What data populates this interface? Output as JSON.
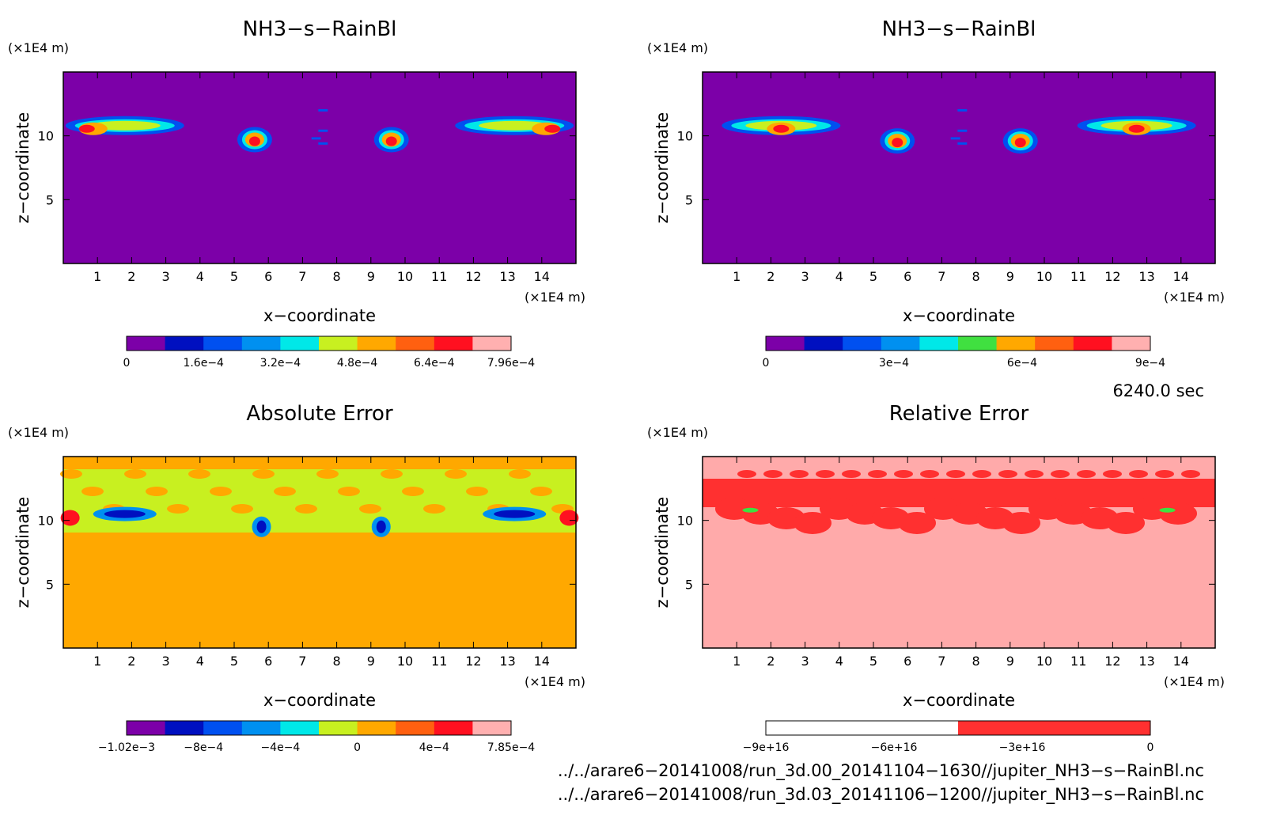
{
  "chart_data": [
    {
      "type": "heatmap",
      "title": "NH3−s−RainBl",
      "xlabel": "x−coordinate",
      "ylabel": "z−coordinate",
      "x_unit": "(×1E4 m)",
      "y_unit": "(×1E4 m)",
      "xlim": [
        0,
        15
      ],
      "ylim": [
        0,
        15
      ],
      "xticks": [
        1,
        2,
        3,
        4,
        5,
        6,
        7,
        8,
        9,
        10,
        11,
        12,
        13,
        14
      ],
      "yticks": [
        5,
        10
      ],
      "background_color": "#7c00a8",
      "blobs": [
        {
          "x": 1.8,
          "z": 10.8,
          "color": "#0b3af0"
        },
        {
          "x": 5.6,
          "z": 9.7,
          "color": "#ff2020"
        },
        {
          "x": 9.6,
          "z": 9.7,
          "color": "#ff2020"
        },
        {
          "x": 13.2,
          "z": 10.8,
          "color": "#0b3af0"
        }
      ],
      "colorbar": {
        "ticks": [
          "0",
          "1.6e−4",
          "3.2e−4",
          "4.8e−4",
          "6.4e−4",
          "7.96e−4"
        ],
        "colors": [
          "#7c00a8",
          "#0010c0",
          "#0050f0",
          "#0090f0",
          "#00e8e8",
          "#c8f020",
          "#ffa800",
          "#ff6010",
          "#ff1020",
          "#ffb0b0"
        ]
      }
    },
    {
      "type": "heatmap",
      "title": "NH3−s−RainBl",
      "xlabel": "x−coordinate",
      "ylabel": "z−coordinate",
      "x_unit": "(×1E4 m)",
      "y_unit": "(×1E4 m)",
      "xlim": [
        0,
        15
      ],
      "ylim": [
        0,
        15
      ],
      "xticks": [
        1,
        2,
        3,
        4,
        5,
        6,
        7,
        8,
        9,
        10,
        11,
        12,
        13,
        14
      ],
      "yticks": [
        5,
        10
      ],
      "background_color": "#7c00a8",
      "blobs": [
        {
          "x": 2.3,
          "z": 10.8,
          "color": "#0b3af0"
        },
        {
          "x": 5.7,
          "z": 9.6,
          "color": "#ff2020"
        },
        {
          "x": 9.3,
          "z": 9.6,
          "color": "#ff2020"
        },
        {
          "x": 12.7,
          "z": 10.8,
          "color": "#0b3af0"
        }
      ],
      "colorbar": {
        "ticks": [
          "0",
          "3e−4",
          "6e−4",
          "9e−4"
        ],
        "colors": [
          "#7c00a8",
          "#0010c0",
          "#0050f0",
          "#0090f0",
          "#00e8e8",
          "#40e040",
          "#ffa800",
          "#ff6010",
          "#ff1020",
          "#ffb0b0"
        ]
      }
    },
    {
      "type": "heatmap",
      "title": "Absolute Error",
      "xlabel": "x−coordinate",
      "ylabel": "z−coordinate",
      "x_unit": "(×1E4 m)",
      "y_unit": "(×1E4 m)",
      "xlim": [
        0,
        15
      ],
      "ylim": [
        0,
        15
      ],
      "xticks": [
        1,
        2,
        3,
        4,
        5,
        6,
        7,
        8,
        9,
        10,
        11,
        12,
        13,
        14
      ],
      "yticks": [
        5,
        10
      ],
      "background_color": "#ffa800",
      "colorbar": {
        "ticks": [
          "−1.02e−3",
          "−8e−4",
          "−4e−4",
          "0",
          "4e−4",
          "7.85e−4"
        ],
        "colors": [
          "#7c00a8",
          "#0010c0",
          "#0050f0",
          "#0090f0",
          "#00e8e8",
          "#c8f020",
          "#ffa800",
          "#ff6010",
          "#ff1020",
          "#ffb0b0"
        ]
      }
    },
    {
      "type": "heatmap",
      "title": "Relative Error",
      "xlabel": "x−coordinate",
      "ylabel": "z−coordinate",
      "x_unit": "(×1E4 m)",
      "y_unit": "(×1E4 m)",
      "xlim": [
        0,
        15
      ],
      "ylim": [
        0,
        15
      ],
      "xticks": [
        1,
        2,
        3,
        4,
        5,
        6,
        7,
        8,
        9,
        10,
        11,
        12,
        13,
        14
      ],
      "yticks": [
        5,
        10
      ],
      "background_color": "#ffaaaa",
      "colorbar": {
        "ticks": [
          "−9e+16",
          "−6e+16",
          "−3e+16",
          "0"
        ],
        "colors": [
          "#ffffff",
          "#ff3030"
        ]
      }
    }
  ],
  "time_label": "6240.0 sec",
  "footer": {
    "line1": "../../arare6−20141008/run_3d.00_20141104−1630//jupiter_NH3−s−RainBl.nc",
    "line2": "../../arare6−20141008/run_3d.03_20141106−1200//jupiter_NH3−s−RainBl.nc"
  }
}
